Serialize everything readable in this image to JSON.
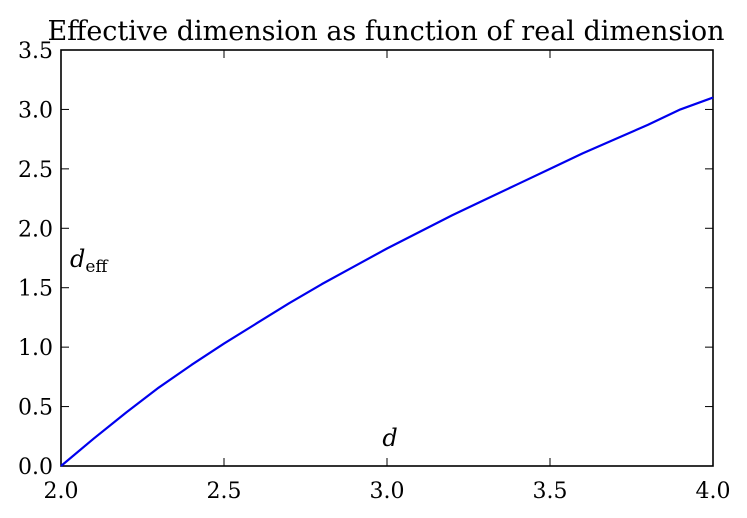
{
  "chart_data": {
    "type": "line",
    "title": "Effective dimension as function of real dimension",
    "xlabel": "d",
    "ylabel": "d",
    "ylabel_subscript": "eff",
    "xlim": [
      2.0,
      4.0
    ],
    "ylim": [
      0.0,
      3.5
    ],
    "xticks": [
      "2.0",
      "2.5",
      "3.0",
      "3.5",
      "4.0"
    ],
    "yticks": [
      "0.0",
      "0.5",
      "1.0",
      "1.5",
      "2.0",
      "2.5",
      "3.0",
      "3.5"
    ],
    "grid": false,
    "series": [
      {
        "color": "#0000ee",
        "x": [
          2.0,
          2.1,
          2.2,
          2.3,
          2.4,
          2.5,
          2.6,
          2.7,
          2.8,
          2.9,
          3.0,
          3.1,
          3.2,
          3.3,
          3.4,
          3.5,
          3.6,
          3.7,
          3.8,
          3.9,
          4.0
        ],
        "y": [
          0.0,
          0.23,
          0.45,
          0.66,
          0.85,
          1.03,
          1.2,
          1.37,
          1.53,
          1.68,
          1.83,
          1.97,
          2.11,
          2.24,
          2.37,
          2.5,
          2.63,
          2.75,
          2.87,
          3.0,
          3.1
        ]
      }
    ]
  }
}
